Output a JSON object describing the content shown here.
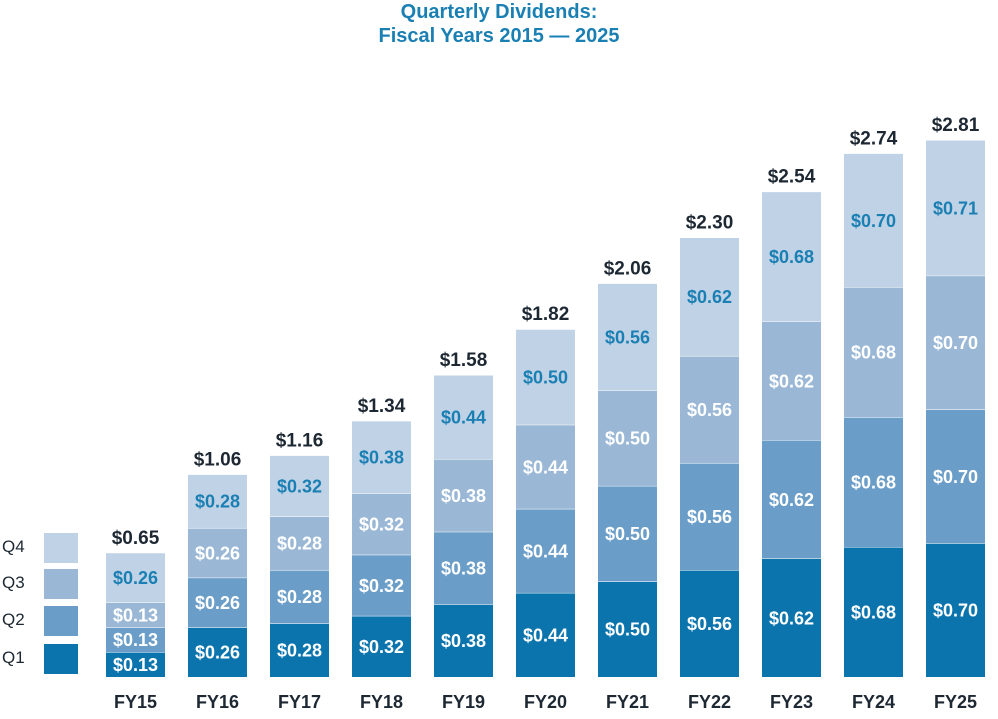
{
  "title_line1": "Quarterly Dividends:",
  "title_line2": "Fiscal Years 2015 — 2025",
  "legend": [
    {
      "label": "Q4",
      "color": "#c0d2e6"
    },
    {
      "label": "Q3",
      "color": "#9ab8d6"
    },
    {
      "label": "Q2",
      "color": "#6a9dc7"
    },
    {
      "label": "Q1",
      "color": "#0b74ad"
    }
  ],
  "chart_data": {
    "type": "bar",
    "stacked": true,
    "title": "Quarterly Dividends: Fiscal Years 2015 — 2025",
    "categories": [
      "FY15",
      "FY16",
      "FY17",
      "FY18",
      "FY19",
      "FY20",
      "FY21",
      "FY22",
      "FY23",
      "FY24",
      "FY25"
    ],
    "series": [
      {
        "name": "Q1",
        "color": "#0b74ad",
        "values": [
          0.13,
          0.26,
          0.28,
          0.32,
          0.38,
          0.44,
          0.5,
          0.56,
          0.62,
          0.68,
          0.7
        ]
      },
      {
        "name": "Q2",
        "color": "#6a9dc7",
        "values": [
          0.13,
          0.26,
          0.28,
          0.32,
          0.38,
          0.44,
          0.5,
          0.56,
          0.62,
          0.68,
          0.7
        ]
      },
      {
        "name": "Q3",
        "color": "#9ab8d6",
        "values": [
          0.13,
          0.26,
          0.28,
          0.32,
          0.38,
          0.44,
          0.5,
          0.56,
          0.62,
          0.68,
          0.7
        ]
      },
      {
        "name": "Q4",
        "color": "#c0d2e6",
        "values": [
          0.26,
          0.28,
          0.32,
          0.38,
          0.44,
          0.5,
          0.56,
          0.62,
          0.68,
          0.7,
          0.71
        ]
      }
    ],
    "segment_labels": [
      [
        "$0.13",
        "$0.13",
        "$0.13",
        "$0.26"
      ],
      [
        "$0.26",
        "$0.26",
        "$0.26",
        "$0.28"
      ],
      [
        "$0.28",
        "$0.28",
        "$0.28",
        "$0.32"
      ],
      [
        "$0.32",
        "$0.32",
        "$0.32",
        "$0.38"
      ],
      [
        "$0.38",
        "$0.38",
        "$0.38",
        "$0.44"
      ],
      [
        "$0.44",
        "$0.44",
        "$0.44",
        "$0.50"
      ],
      [
        "$0.50",
        "$0.50",
        "$0.50",
        "$0.56"
      ],
      [
        "$0.56",
        "$0.56",
        "$0.56",
        "$0.62"
      ],
      [
        "$0.62",
        "$0.62",
        "$0.62",
        "$0.68"
      ],
      [
        "$0.68",
        "$0.68",
        "$0.68",
        "$0.70"
      ],
      [
        "$0.70",
        "$0.70",
        "$0.70",
        "$0.71"
      ]
    ],
    "totals": [
      0.65,
      1.06,
      1.16,
      1.34,
      1.58,
      1.82,
      2.06,
      2.3,
      2.54,
      2.74,
      2.81
    ],
    "total_labels": [
      "$0.65",
      "$1.06",
      "$1.16",
      "$1.34",
      "$1.58",
      "$1.82",
      "$2.06",
      "$2.30",
      "$2.54",
      "$2.74",
      "$2.81"
    ],
    "ylim": [
      0,
      2.81
    ],
    "grid": false,
    "legend_position": "left",
    "label_colors": {
      "on_dark": "#ffffff",
      "on_light": "#1a7fb3",
      "totals": "#1d2833"
    }
  }
}
